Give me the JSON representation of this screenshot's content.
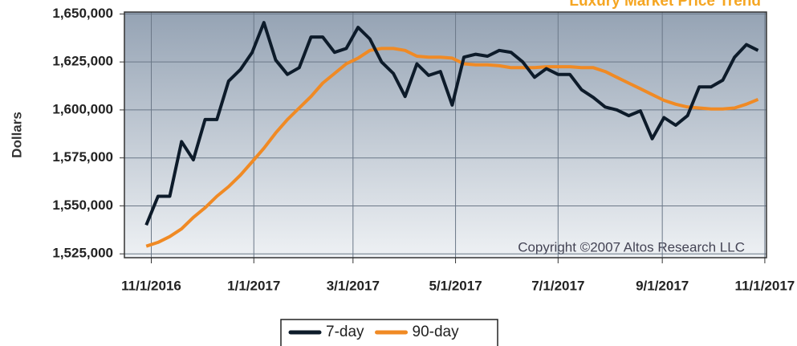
{
  "chart_data": {
    "type": "line",
    "title": "Luxury Market Price Trend",
    "y_label": "Dollars",
    "annotation": "Copyright ©2007 Altos Research LLC",
    "x": [
      "2016-10-29",
      "2016-11-05",
      "2016-11-12",
      "2016-11-19",
      "2016-11-26",
      "2016-12-03",
      "2016-12-10",
      "2016-12-17",
      "2016-12-24",
      "2016-12-31",
      "2017-01-07",
      "2017-01-14",
      "2017-01-21",
      "2017-01-28",
      "2017-02-04",
      "2017-02-11",
      "2017-02-18",
      "2017-02-25",
      "2017-03-04",
      "2017-03-11",
      "2017-03-18",
      "2017-03-25",
      "2017-04-01",
      "2017-04-08",
      "2017-04-15",
      "2017-04-22",
      "2017-04-29",
      "2017-05-06",
      "2017-05-13",
      "2017-05-20",
      "2017-05-27",
      "2017-06-03",
      "2017-06-10",
      "2017-06-17",
      "2017-06-24",
      "2017-07-01",
      "2017-07-08",
      "2017-07-15",
      "2017-07-22",
      "2017-07-29",
      "2017-08-05",
      "2017-08-12",
      "2017-08-19",
      "2017-08-26",
      "2017-09-02",
      "2017-09-09",
      "2017-09-16",
      "2017-09-23",
      "2017-09-30",
      "2017-10-07",
      "2017-10-14",
      "2017-10-21",
      "2017-10-28"
    ],
    "series": [
      {
        "name": "7-day",
        "color": "#0d1b2a",
        "values": [
          1540000,
          1555000,
          1555000,
          1583500,
          1574000,
          1595000,
          1595000,
          1615000,
          1621000,
          1630000,
          1645500,
          1626000,
          1618500,
          1622000,
          1638000,
          1638000,
          1630000,
          1632000,
          1643000,
          1637000,
          1625000,
          1619000,
          1607000,
          1624000,
          1618000,
          1620000,
          1602500,
          1627500,
          1629000,
          1628000,
          1631000,
          1630000,
          1625000,
          1617000,
          1621500,
          1618500,
          1618500,
          1610500,
          1606500,
          1601500,
          1600000,
          1597000,
          1599500,
          1585000,
          1596000,
          1592000,
          1597000,
          1612000,
          1612000,
          1615500,
          1627500,
          1634000,
          1631000
        ]
      },
      {
        "name": "90-day",
        "color": "#f08a24",
        "values": [
          1529000,
          1531000,
          1534000,
          1538000,
          1544000,
          1549000,
          1555000,
          1560000,
          1566000,
          1573000,
          1580000,
          1588000,
          1595000,
          1601000,
          1607000,
          1614000,
          1619000,
          1624000,
          1627000,
          1631000,
          1632000,
          1632000,
          1631000,
          1628000,
          1627500,
          1627500,
          1627000,
          1624000,
          1623500,
          1623500,
          1623000,
          1622000,
          1622000,
          1622000,
          1622500,
          1622500,
          1622500,
          1622000,
          1622000,
          1620000,
          1617000,
          1614000,
          1611000,
          1608000,
          1605000,
          1603000,
          1601500,
          1601000,
          1600500,
          1600500,
          1601000,
          1603000,
          1605500
        ]
      }
    ],
    "xlim": [
      "2016-10-16",
      "2017-11-02"
    ],
    "xticks": [
      {
        "value": "2016-11-01",
        "label": "11/1/2016"
      },
      {
        "value": "2017-01-01",
        "label": "1/1/2017"
      },
      {
        "value": "2017-03-01",
        "label": "3/1/2017"
      },
      {
        "value": "2017-05-01",
        "label": "5/1/2017"
      },
      {
        "value": "2017-07-01",
        "label": "7/1/2017"
      },
      {
        "value": "2017-09-01",
        "label": "9/1/2017"
      },
      {
        "value": "2017-11-01",
        "label": "11/1/2017"
      }
    ],
    "ylim": [
      1523000,
      1651000
    ],
    "yticks": [
      {
        "value": 1525000,
        "label": "1,525,000"
      },
      {
        "value": 1550000,
        "label": "1,550,000"
      },
      {
        "value": 1575000,
        "label": "1,575,000"
      },
      {
        "value": 1600000,
        "label": "1,600,000"
      },
      {
        "value": 1625000,
        "label": "1,625,000"
      },
      {
        "value": 1650000,
        "label": "1,650,000"
      }
    ],
    "grid": true,
    "legend": "bottom"
  }
}
